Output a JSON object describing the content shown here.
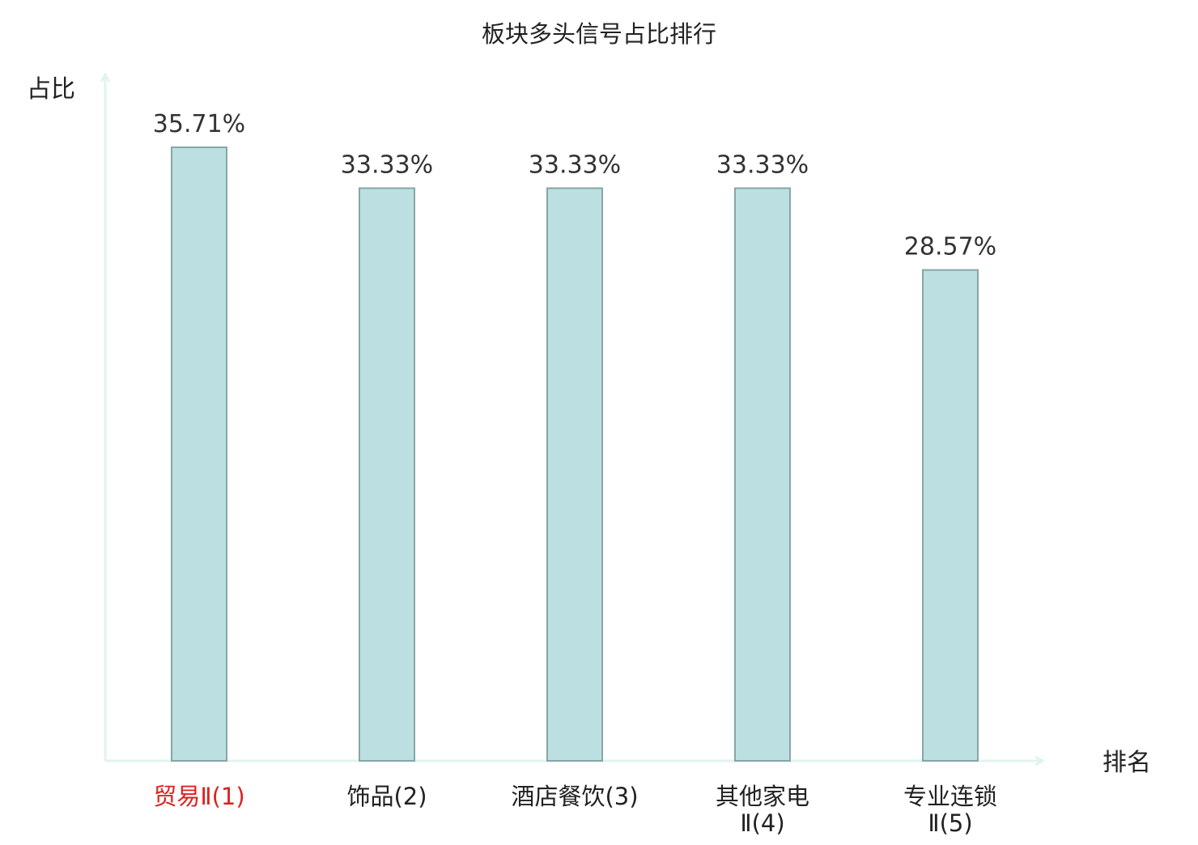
{
  "chart_data": {
    "type": "bar",
    "title": "板块多头信号占比排行",
    "ylabel": "占比",
    "xlabel": "排名",
    "categories": [
      {
        "lines": [
          "贸易Ⅱ(1)"
        ],
        "highlight": true
      },
      {
        "lines": [
          "饰品(2)"
        ],
        "highlight": false
      },
      {
        "lines": [
          "酒店餐饮(3)"
        ],
        "highlight": false
      },
      {
        "lines": [
          "其他家电",
          "Ⅱ(4)"
        ],
        "highlight": false
      },
      {
        "lines": [
          "专业连锁",
          "Ⅱ(5)"
        ],
        "highlight": false
      }
    ],
    "values": [
      35.71,
      33.33,
      33.33,
      33.33,
      28.57
    ],
    "value_labels": [
      "35.71%",
      "33.33%",
      "33.33%",
      "33.33%",
      "28.57%"
    ],
    "unit": "%",
    "ylim": [
      0,
      35.71
    ],
    "grid": false,
    "legend": "none",
    "colors": {
      "bar_fill": "#bce0e1",
      "bar_stroke": "#87a5a6",
      "axis": "#e1f3f1",
      "text": "#222222",
      "value_label": "#333333",
      "highlight": "#e02020"
    }
  }
}
